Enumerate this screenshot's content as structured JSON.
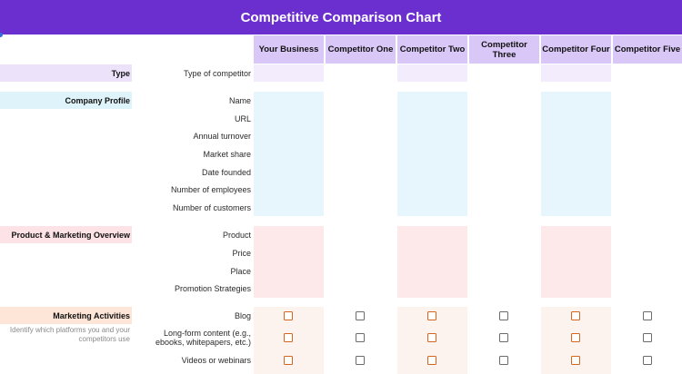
{
  "title": "Competitive Comparison Chart",
  "columns": [
    "Your Business",
    "Competitor One",
    "Competitor Two",
    "Competitor Three",
    "Competitor Four",
    "Competitor Five"
  ],
  "sections": {
    "type": {
      "label": "Type",
      "rows": [
        "Type of competitor"
      ]
    },
    "company_profile": {
      "label": "Company Profile",
      "rows": [
        "Name",
        "URL",
        "Annual turnover",
        "Market share",
        "Date founded",
        "Number of employees",
        "Number of customers"
      ]
    },
    "product_marketing": {
      "label": "Product & Marketing Overview",
      "rows": [
        "Product",
        "Price",
        "Place",
        "Promotion Strategies"
      ]
    },
    "marketing_activities": {
      "label": "Marketing Activities",
      "hint": "Identify which platforms you and your competitors use",
      "rows": [
        "Blog",
        "Long-form content (e.g., ebooks, whitepapers, etc.)",
        "Videos or webinars"
      ],
      "checked": [
        [
          false,
          false,
          false,
          false,
          false,
          false
        ],
        [
          false,
          false,
          false,
          false,
          false,
          false
        ],
        [
          false,
          false,
          false,
          false,
          false,
          false
        ]
      ]
    }
  },
  "colors": {
    "title_bar": "#6b2fcf",
    "header_cell": "#d9c7f7",
    "type_fill": "#ece3fb",
    "profile_fill": "#dff3fb",
    "product_fill": "#fde3e6",
    "marketing_fill": "#fde6d8",
    "checkbox_accent": "#d4651f",
    "checkbox_plain": "#6b6b6b"
  }
}
